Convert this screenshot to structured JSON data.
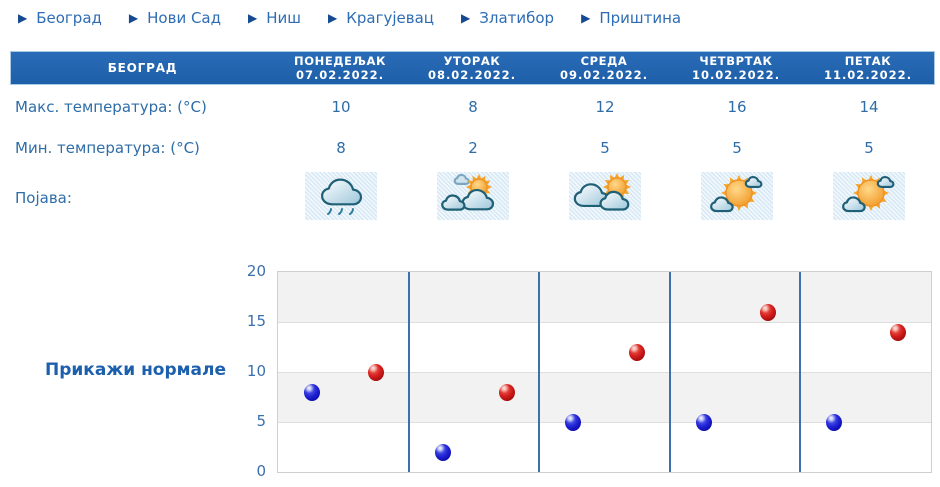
{
  "nav": {
    "arrow_glyph": "▶",
    "items": [
      "Београд",
      "Нови Сад",
      "Ниш",
      "Крагујевац",
      "Златибор",
      "Приштина"
    ]
  },
  "table": {
    "station": "БЕОГРАД",
    "days": [
      {
        "name": "ПОНЕДЕЉАК",
        "date": "07.02.2022."
      },
      {
        "name": "УТОРАК",
        "date": "08.02.2022."
      },
      {
        "name": "СРЕДА",
        "date": "09.02.2022."
      },
      {
        "name": "ЧЕТВРТАК",
        "date": "10.02.2022."
      },
      {
        "name": "ПЕТАК",
        "date": "11.02.2022."
      }
    ],
    "max_label": "Макс. температура: (°C)",
    "min_label": "Мин. температура: (°C)",
    "phenomenon_label": "Појава:",
    "max_values": [
      "10",
      "8",
      "12",
      "16",
      "14"
    ],
    "min_values": [
      "8",
      "2",
      "5",
      "5",
      "5"
    ],
    "icons": [
      "rain-cloud-icon",
      "sun-behind-clouds-icon",
      "clouds-with-sun-icon",
      "mostly-sunny-icon",
      "mostly-sunny-icon"
    ]
  },
  "normals_button": {
    "label": "Прикажи нормале"
  },
  "chart_data": {
    "type": "scatter",
    "categories": [
      "07.02.2022.",
      "08.02.2022.",
      "09.02.2022.",
      "10.02.2022.",
      "11.02.2022."
    ],
    "series": [
      {
        "name": "Мин. температура (°C)",
        "color": "#1515cc",
        "values": [
          8,
          2,
          5,
          5,
          5
        ]
      },
      {
        "name": "Макс. температура (°C)",
        "color": "#cc1515",
        "values": [
          10,
          8,
          12,
          16,
          14
        ]
      }
    ],
    "title": "",
    "xlabel": "",
    "ylabel": "",
    "ylim": [
      0,
      20
    ],
    "yticks": [
      20,
      15,
      10,
      5,
      0
    ],
    "grid": true,
    "legend_position": "none",
    "band_color": "#f2f2f2",
    "separator_color": "#3c72ab"
  },
  "colors": {
    "header_bg": "#2061ae",
    "link_blue": "#1b5fad",
    "text_blue": "#2e6da8",
    "nav_blue": "#2e6cb4"
  }
}
